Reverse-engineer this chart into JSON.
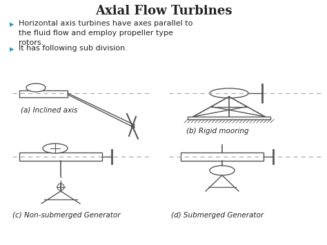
{
  "title": "Axial Flow Turbines",
  "title_fontsize": 13,
  "title_fontweight": "bold",
  "bullet_color": "#2299BB",
  "text_color": "#222222",
  "bg_color": "#ffffff",
  "bullets": [
    "Horizontal axis turbines have axes parallel to\nthe fluid flow and employ propeller type\nrotors.",
    "It has following sub division."
  ],
  "captions": [
    "(a) Inclined axis",
    "(b) Rigid mooring",
    "(c) Non-submerged Generator",
    "(d) Submerged Generator"
  ],
  "line_color": "#555555",
  "dashed_color": "#aaaaaa"
}
